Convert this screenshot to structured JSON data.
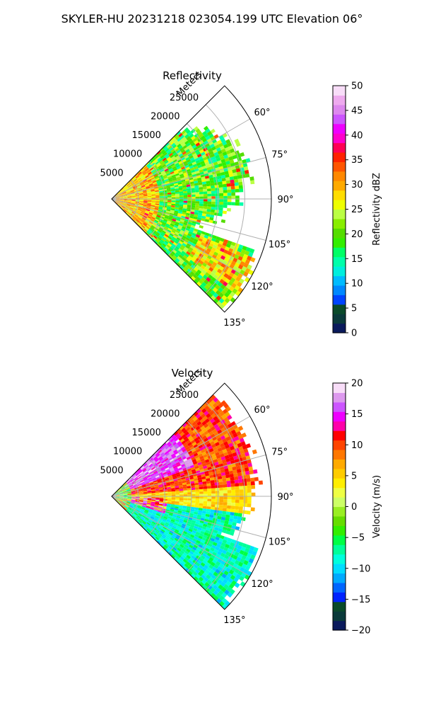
{
  "figure": {
    "title": "SKYLER-HU  20231218  023054.199 UTC Elevation 06°"
  },
  "chart_data": [
    {
      "type": "heatmap",
      "subtype": "polar-sector-radar",
      "title": "Reflectivity",
      "radial_axis_label": "Meters",
      "radial_ticks": [
        5000,
        10000,
        15000,
        20000,
        25000
      ],
      "radial_tick_labels": [
        "5000",
        "10000",
        "15000",
        "20000",
        "25000"
      ],
      "range_max": 30000,
      "azimuth_range_deg": [
        45,
        135
      ],
      "azimuth_ticks": [
        60,
        75,
        90,
        105,
        120,
        135
      ],
      "azimuth_tick_labels": [
        "60°",
        "75°",
        "90°",
        "105°",
        "120°",
        "135°"
      ],
      "grid": true,
      "colorbar": {
        "label": "Reflectivity dBZ",
        "vmin": 0,
        "vmax": 50,
        "ticks": [
          0,
          5,
          10,
          15,
          20,
          25,
          30,
          35,
          40,
          45,
          50
        ],
        "tick_labels": [
          "0",
          "5",
          "10",
          "15",
          "20",
          "25",
          "30",
          "35",
          "40",
          "45",
          "50"
        ],
        "colors": [
          "#0a1a5c",
          "#0a3a3a",
          "#0a4a2a",
          "#0044ff",
          "#0088ff",
          "#00bbff",
          "#00eedd",
          "#00ffaa",
          "#00ff66",
          "#33ee00",
          "#55dd00",
          "#88ee00",
          "#bbff44",
          "#eeff00",
          "#ffdd00",
          "#ffaa00",
          "#ff8800",
          "#ff5500",
          "#ff2200",
          "#ff0055",
          "#ff00cc",
          "#ee00ff",
          "#cc55ff",
          "#dd88ee",
          "#eeaaee",
          "#f8ddf8"
        ]
      }
    },
    {
      "type": "heatmap",
      "subtype": "polar-sector-radar",
      "title": "Velocity",
      "radial_axis_label": "Meters",
      "radial_ticks": [
        5000,
        10000,
        15000,
        20000,
        25000
      ],
      "radial_tick_labels": [
        "5000",
        "10000",
        "15000",
        "20000",
        "25000"
      ],
      "range_max": 30000,
      "azimuth_range_deg": [
        45,
        135
      ],
      "azimuth_ticks": [
        60,
        75,
        90,
        105,
        120,
        135
      ],
      "azimuth_tick_labels": [
        "60°",
        "75°",
        "90°",
        "105°",
        "120°",
        "135°"
      ],
      "grid": true,
      "colorbar": {
        "label": "Velocity (m/s)",
        "vmin": -20,
        "vmax": 20,
        "ticks": [
          -20,
          -15,
          -10,
          -5,
          0,
          5,
          10,
          15,
          20
        ],
        "tick_labels": [
          "−20",
          "−15",
          "−10",
          "−5",
          "0",
          "5",
          "10",
          "15",
          "20"
        ],
        "colors": [
          "#0a1a5c",
          "#0a3a3a",
          "#0a4a2a",
          "#0022ff",
          "#0066ff",
          "#00aaff",
          "#00ddff",
          "#00ffdd",
          "#00ff99",
          "#00ff44",
          "#33ee00",
          "#66dd00",
          "#99ee22",
          "#ccff66",
          "#eeff44",
          "#ffee00",
          "#ffcc00",
          "#ffaa00",
          "#ff7700",
          "#ff4400",
          "#ff0000",
          "#ff00aa",
          "#ee00ff",
          "#cc55ff",
          "#dd99ee",
          "#f8ddf8"
        ]
      }
    }
  ]
}
